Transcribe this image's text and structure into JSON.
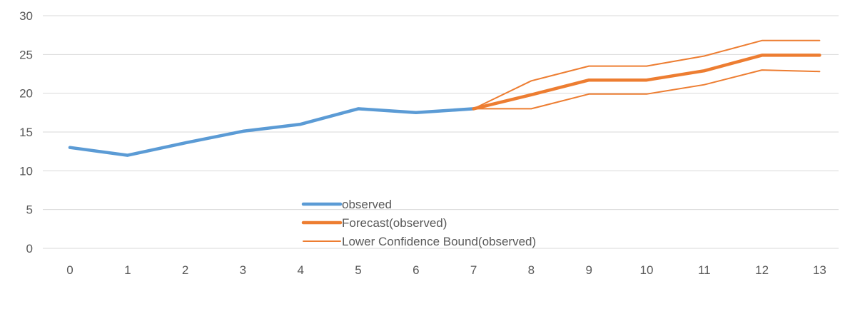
{
  "chart_data": {
    "type": "line",
    "x": [
      0,
      1,
      2,
      3,
      4,
      5,
      6,
      7,
      8,
      9,
      10,
      11,
      12,
      13
    ],
    "ylim": [
      0,
      30
    ],
    "yticks": [
      0,
      5,
      10,
      15,
      20,
      25,
      30
    ],
    "grid": true,
    "legend_placement": "bottom-center",
    "series": [
      {
        "name": "observed",
        "color": "#5b9bd5",
        "style": "thick",
        "x": [
          0,
          1,
          2,
          3,
          4,
          5,
          6,
          7
        ],
        "values": [
          13,
          12,
          13.6,
          15.1,
          16,
          18,
          17.5,
          18
        ]
      },
      {
        "name": "Forecast(observed)",
        "color": "#ed7d31",
        "style": "thick",
        "x": [
          7,
          8,
          9,
          10,
          11,
          12,
          13
        ],
        "values": [
          18,
          19.8,
          21.7,
          21.7,
          22.9,
          24.9,
          24.9
        ]
      },
      {
        "name": "Lower Confidence Bound(observed)",
        "color": "#ed7d31",
        "style": "thin",
        "x": [
          7,
          8,
          9,
          10,
          11,
          12,
          13
        ],
        "values": [
          18,
          18,
          19.9,
          19.9,
          21.1,
          23,
          22.8
        ]
      },
      {
        "name": "",
        "color": "#ed7d31",
        "style": "thin",
        "x": [
          7,
          8,
          9,
          10,
          11,
          12,
          13
        ],
        "values": [
          18,
          21.6,
          23.5,
          23.5,
          24.8,
          26.8,
          26.8
        ]
      }
    ],
    "legend": [
      {
        "label": "observed",
        "color": "#5b9bd5",
        "style": "thick"
      },
      {
        "label": "Forecast(observed)",
        "color": "#ed7d31",
        "style": "thick"
      },
      {
        "label": "Lower Confidence Bound(observed)",
        "color": "#ed7d31",
        "style": "thin"
      }
    ]
  }
}
